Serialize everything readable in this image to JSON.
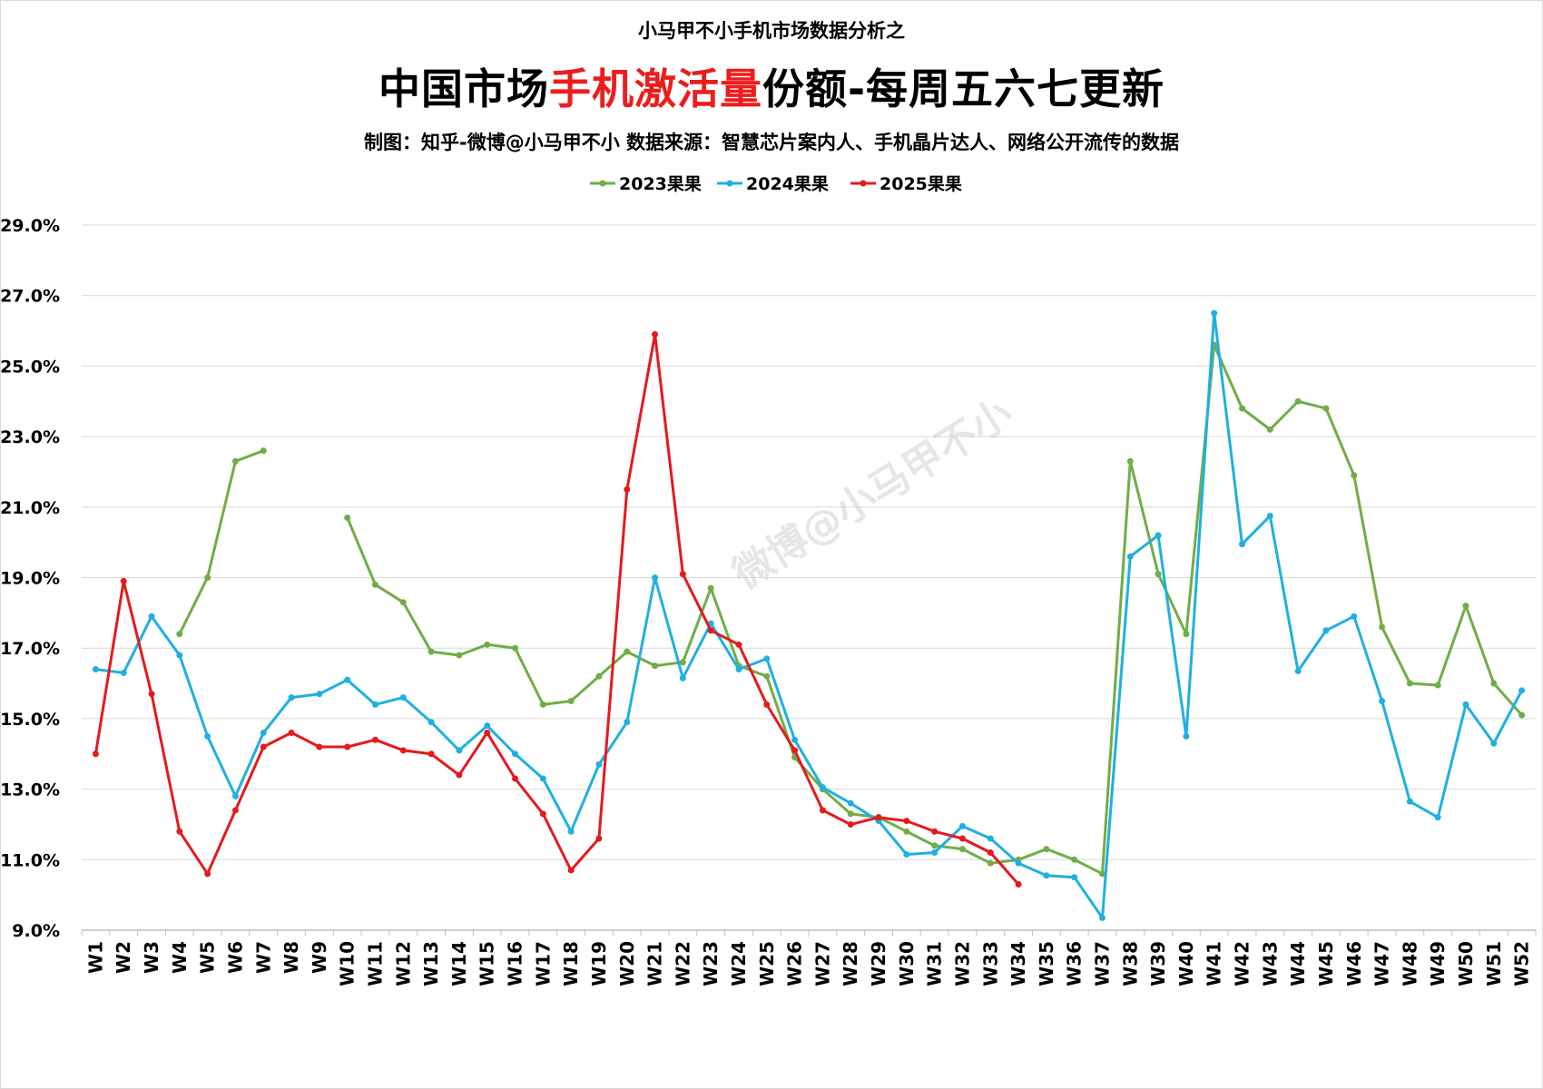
{
  "header": {
    "supertitle": "小马甲不小手机市场数据分析之",
    "title_part1": "中国市场",
    "title_highlight": "手机激活量",
    "title_part2": "份额-每周五六七更新",
    "subtitle": "制图：知乎-微博@小马甲不小   数据来源：智慧芯片案内人、手机晶片达人、网络公开流传的数据"
  },
  "watermark": "微博@小马甲不小",
  "colors": {
    "s2023": "#70ad47",
    "s2024": "#1fb0e0",
    "s2025": "#e41a1c",
    "title_highlight": "#ee1c1c",
    "grid": "#d9d9d9"
  },
  "chart_data": {
    "type": "line",
    "title": "中国市场手机激活量份额-每周五六七更新",
    "xlabel": "",
    "ylabel": "",
    "ylim": [
      9.0,
      29.0
    ],
    "y_ticks": [
      "9.0%",
      "11.0%",
      "13.0%",
      "15.0%",
      "17.0%",
      "19.0%",
      "21.0%",
      "23.0%",
      "25.0%",
      "27.0%",
      "29.0%"
    ],
    "y_unit": "%",
    "grid": true,
    "legend_position": "top-center",
    "categories": [
      "W1",
      "W2",
      "W3",
      "W4",
      "W5",
      "W6",
      "W7",
      "W8",
      "W9",
      "W10",
      "W11",
      "W12",
      "W13",
      "W14",
      "W15",
      "W16",
      "W17",
      "W18",
      "W19",
      "W20",
      "W21",
      "W22",
      "W23",
      "W24",
      "W25",
      "W26",
      "W27",
      "W28",
      "W29",
      "W30",
      "W31",
      "W32",
      "W33",
      "W34",
      "W35",
      "W36",
      "W37",
      "W38",
      "W39",
      "W40",
      "W41",
      "W42",
      "W43",
      "W44",
      "W45",
      "W46",
      "W47",
      "W48",
      "W49",
      "W50",
      "W51",
      "W52"
    ],
    "series": [
      {
        "name": "2023果果",
        "color": "#70ad47",
        "values": [
          null,
          null,
          null,
          17.4,
          19.0,
          22.3,
          22.6,
          null,
          null,
          20.7,
          18.8,
          18.3,
          16.9,
          16.8,
          17.1,
          17.0,
          15.4,
          15.5,
          16.2,
          16.9,
          16.5,
          16.6,
          18.7,
          16.5,
          16.2,
          13.9,
          13.0,
          12.3,
          12.2,
          11.8,
          11.4,
          11.3,
          10.9,
          11.0,
          11.3,
          11.0,
          10.6,
          22.3,
          19.1,
          17.4,
          25.6,
          23.8,
          23.2,
          24.0,
          23.8,
          21.9,
          17.6,
          16.0,
          15.95,
          18.2,
          16.0,
          15.1
        ]
      },
      {
        "name": "2024果果",
        "color": "#1fb0e0",
        "values": [
          16.4,
          16.3,
          17.9,
          16.8,
          14.5,
          12.8,
          14.6,
          15.6,
          15.7,
          16.1,
          15.4,
          15.6,
          14.9,
          14.1,
          14.8,
          14.0,
          13.3,
          11.8,
          13.7,
          14.9,
          19.0,
          16.15,
          17.7,
          16.4,
          16.7,
          14.4,
          13.05,
          12.6,
          12.1,
          11.15,
          11.2,
          11.95,
          11.6,
          10.9,
          10.55,
          10.5,
          9.35,
          19.6,
          20.2,
          14.5,
          26.5,
          19.95,
          20.75,
          16.35,
          17.5,
          17.9,
          15.5,
          12.65,
          12.2,
          15.4,
          14.3,
          15.8
        ]
      },
      {
        "name": "2025果果",
        "color": "#e41a1c",
        "values": [
          14.0,
          18.9,
          15.7,
          11.8,
          10.6,
          12.4,
          14.2,
          14.6,
          14.2,
          14.2,
          14.4,
          14.1,
          14.0,
          13.4,
          14.6,
          13.3,
          12.3,
          10.7,
          11.6,
          21.5,
          25.9,
          19.1,
          17.5,
          17.1,
          15.4,
          14.1,
          12.4,
          12.0,
          12.2,
          12.1,
          11.8,
          11.6,
          11.2,
          10.3,
          null,
          null,
          null,
          null,
          null,
          null,
          null,
          null,
          null,
          null,
          null,
          null,
          null,
          null,
          null,
          null,
          null,
          null
        ]
      }
    ]
  }
}
